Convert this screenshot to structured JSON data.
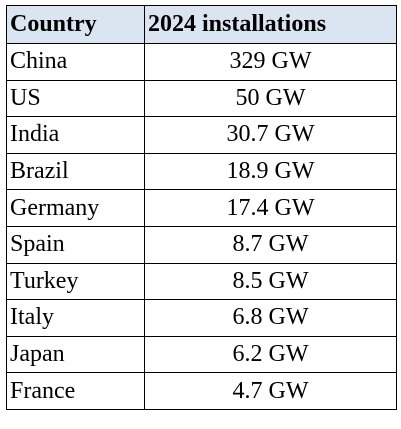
{
  "table": {
    "headers": [
      "Country",
      "2024 installations"
    ],
    "rows": [
      {
        "country": "China",
        "installations": "329 GW"
      },
      {
        "country": "US",
        "installations": "50 GW"
      },
      {
        "country": "India",
        "installations": "30.7 GW"
      },
      {
        "country": "Brazil",
        "installations": "18.9 GW"
      },
      {
        "country": "Germany",
        "installations": "17.4 GW"
      },
      {
        "country": "Spain",
        "installations": "8.7 GW"
      },
      {
        "country": "Turkey",
        "installations": "8.5 GW"
      },
      {
        "country": "Italy",
        "installations": "6.8 GW"
      },
      {
        "country": "Japan",
        "installations": "6.2 GW"
      },
      {
        "country": "France",
        "installations": "4.7 GW"
      }
    ]
  },
  "colors": {
    "header_background": "#dbe5f1",
    "border": "#000000",
    "text": "#000000"
  }
}
